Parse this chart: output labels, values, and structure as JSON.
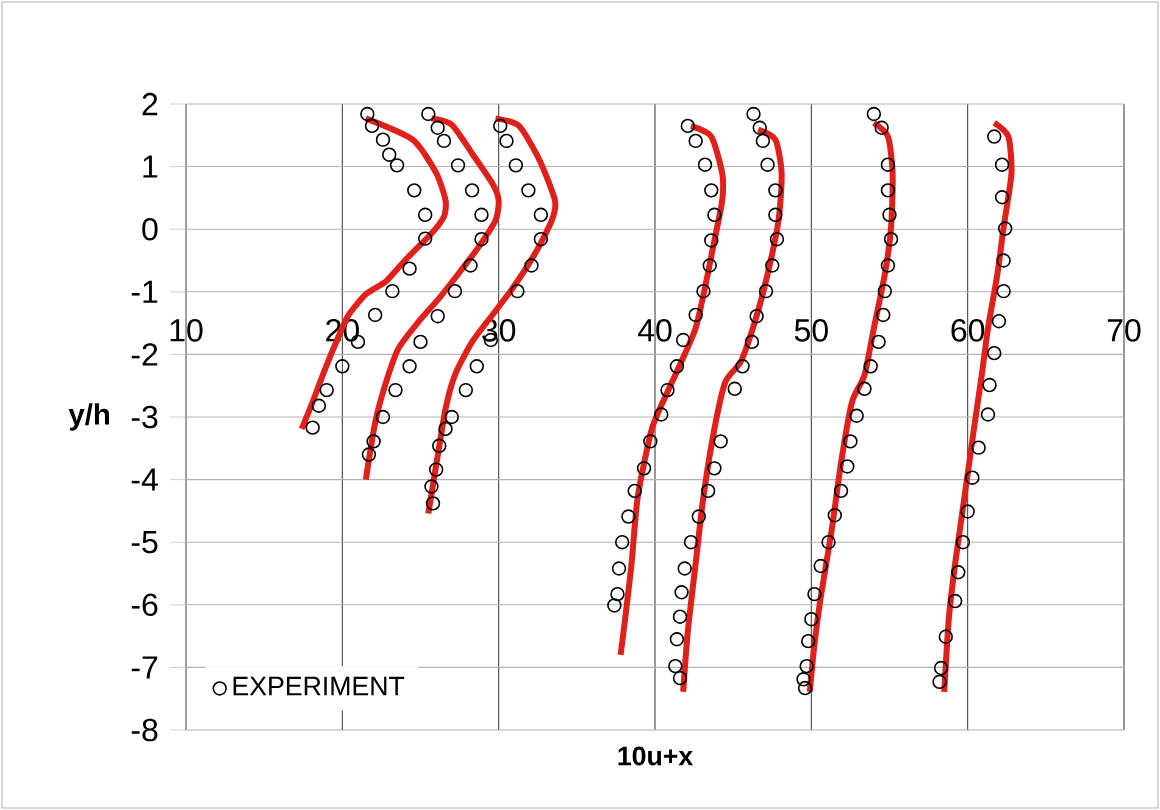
{
  "chart_data": {
    "type": "line",
    "xlabel": "10u+x",
    "ylabel": "y/h",
    "xlim": [
      10,
      70
    ],
    "ylim": [
      -8,
      2
    ],
    "xticks": [
      10,
      20,
      30,
      40,
      50,
      60,
      70
    ],
    "yticks": [
      -8,
      -7,
      -6,
      -5,
      -4,
      -3,
      -2,
      -1,
      0,
      1,
      2
    ],
    "grid": true,
    "legend": "bottom left",
    "series": [
      {
        "color": "#e0201b",
        "marker": "none",
        "line_style": "solid",
        "x": [
          21.5,
          24.5,
          26.0,
          26.6,
          26.5,
          25.7,
          24.0,
          22.8,
          21.5,
          20.4,
          19.8,
          18.9,
          18.1,
          17.4,
          null,
          25.7,
          27.0,
          28.3,
          29.6,
          30.0,
          29.8,
          28.7,
          27.4,
          26.2,
          24.9,
          23.6,
          22.8,
          22.1,
          21.5,
          null,
          29.8,
          31.3,
          32.6,
          33.6,
          33.4,
          32.3,
          30.9,
          29.6,
          28.3,
          27.2,
          26.6,
          26.1,
          25.5,
          null,
          42.3,
          43.6,
          44.3,
          44.3,
          43.8,
          43.2,
          42.6,
          41.7,
          40.8,
          39.8,
          38.9,
          38.5,
          38.1,
          37.8,
          null,
          46.6,
          47.7,
          48.1,
          47.9,
          47.2,
          46.4,
          45.5,
          44.5,
          43.8,
          43.1,
          42.6,
          42.1,
          41.8,
          null,
          54.0,
          54.9,
          55.2,
          55.1,
          54.7,
          54.0,
          53.4,
          52.6,
          51.9,
          51.3,
          50.6,
          50.2,
          49.9,
          null,
          61.7,
          62.6,
          62.8,
          62.3,
          61.9,
          61.3,
          60.9,
          60.4,
          59.8,
          59.2,
          58.8,
          58.5
        ],
        "values": [
          1.77,
          1.43,
          0.9,
          0.46,
          0.2,
          -0.07,
          -0.5,
          -0.83,
          -1.04,
          -1.37,
          -1.69,
          -2.23,
          -2.76,
          -3.19,
          null,
          1.77,
          1.67,
          1.21,
          0.73,
          0.46,
          0.14,
          -0.29,
          -0.72,
          -1.1,
          -1.47,
          -1.9,
          -2.44,
          -3.09,
          -4.0,
          null,
          1.77,
          1.65,
          1.11,
          0.46,
          0.14,
          -0.4,
          -0.94,
          -1.37,
          -1.8,
          -2.33,
          -2.87,
          -3.62,
          -4.54,
          null,
          1.65,
          1.48,
          0.89,
          0.46,
          -0.18,
          -0.93,
          -1.58,
          -2.11,
          -2.6,
          -3.19,
          -4.27,
          -5.34,
          -6.2,
          -6.8,
          null,
          1.59,
          1.43,
          0.89,
          0.14,
          -0.72,
          -1.47,
          -2.11,
          -2.44,
          -3.19,
          -4.27,
          -5.34,
          -6.42,
          -7.39,
          null,
          1.7,
          1.48,
          0.89,
          0.03,
          -0.72,
          -1.58,
          -2.33,
          -2.76,
          -3.73,
          -4.81,
          -5.88,
          -6.63,
          -7.39,
          null,
          1.7,
          1.48,
          0.89,
          0.03,
          -0.72,
          -1.58,
          -2.33,
          -3.19,
          -4.27,
          -5.34,
          -6.2,
          -7.39
        ]
      },
      {
        "type": "scatter",
        "name": "EXPERIMENT",
        "color": "#000000",
        "marker": "circle",
        "x": [
          21.6,
          21.9,
          22.6,
          23.0,
          23.5,
          24.6,
          25.3,
          25.3,
          24.3,
          23.2,
          22.1,
          21.0,
          20.0,
          19.0,
          18.5,
          18.1,
          25.5,
          26.1,
          26.5,
          27.4,
          28.3,
          28.9,
          28.9,
          28.2,
          27.2,
          26.1,
          25.0,
          24.3,
          23.4,
          22.6,
          22.0,
          21.7,
          30.1,
          30.5,
          31.1,
          31.9,
          32.7,
          32.7,
          32.1,
          31.2,
          29.5,
          28.6,
          27.9,
          27.0,
          26.6,
          26.2,
          26.0,
          25.7,
          25.8,
          42.1,
          42.6,
          43.2,
          43.6,
          43.8,
          43.6,
          43.5,
          43.1,
          42.6,
          41.8,
          41.4,
          40.8,
          40.4,
          39.7,
          39.3,
          38.7,
          38.3,
          37.9,
          37.7,
          37.6,
          37.4,
          46.3,
          46.7,
          46.9,
          47.2,
          47.7,
          47.7,
          47.8,
          47.5,
          47.1,
          46.5,
          46.2,
          45.6,
          45.1,
          44.2,
          43.8,
          43.4,
          42.8,
          42.3,
          41.9,
          41.7,
          41.6,
          41.4,
          41.3,
          41.6,
          54.0,
          54.5,
          54.9,
          54.9,
          55.0,
          55.1,
          54.9,
          54.7,
          54.6,
          54.3,
          53.8,
          53.4,
          52.9,
          52.5,
          52.3,
          51.9,
          51.5,
          51.1,
          50.6,
          50.2,
          50.0,
          49.8,
          49.7,
          49.5,
          49.6,
          61.7,
          62.2,
          62.2,
          62.4,
          62.3,
          62.3,
          62.0,
          61.7,
          61.4,
          61.3,
          60.7,
          60.3,
          60.0,
          59.7,
          59.4,
          59.2,
          58.6,
          58.3,
          58.2
        ],
        "values": [
          1.84,
          1.65,
          1.43,
          1.19,
          1.02,
          0.62,
          0.23,
          -0.15,
          -0.63,
          -0.99,
          -1.37,
          -1.8,
          -2.19,
          -2.57,
          -2.82,
          -3.17,
          1.84,
          1.62,
          1.41,
          1.02,
          0.62,
          0.23,
          -0.16,
          -0.58,
          -0.99,
          -1.39,
          -1.8,
          -2.19,
          -2.57,
          -3.0,
          -3.39,
          -3.6,
          1.65,
          1.41,
          1.02,
          0.62,
          0.23,
          -0.16,
          -0.58,
          -0.99,
          -1.77,
          -2.19,
          -2.57,
          -3.0,
          -3.19,
          -3.46,
          -3.84,
          -4.11,
          -4.38,
          1.65,
          1.41,
          1.03,
          0.62,
          0.23,
          -0.18,
          -0.58,
          -0.99,
          -1.37,
          -1.77,
          -2.19,
          -2.57,
          -2.96,
          -3.39,
          -3.82,
          -4.18,
          -4.59,
          -5.0,
          -5.42,
          -5.83,
          -6.01,
          1.84,
          1.62,
          1.41,
          1.03,
          0.62,
          0.23,
          -0.16,
          -0.58,
          -0.99,
          -1.39,
          -1.8,
          -2.19,
          -2.55,
          -3.39,
          -3.82,
          -4.18,
          -4.59,
          -5.0,
          -5.42,
          -5.8,
          -6.19,
          -6.55,
          -6.98,
          -7.17,
          1.84,
          1.62,
          1.03,
          0.62,
          0.23,
          -0.16,
          -0.58,
          -0.99,
          -1.37,
          -1.8,
          -2.19,
          -2.55,
          -2.98,
          -3.39,
          -3.79,
          -4.18,
          -4.57,
          -5.0,
          -5.38,
          -5.83,
          -6.23,
          -6.58,
          -6.98,
          -7.19,
          -7.33,
          1.48,
          1.03,
          0.51,
          0.01,
          -0.5,
          -0.99,
          -1.47,
          -1.98,
          -2.49,
          -2.96,
          -3.49,
          -3.97,
          -4.51,
          -5.0,
          -5.48,
          -5.94,
          -6.51,
          -7.01,
          -7.23
        ]
      }
    ]
  }
}
